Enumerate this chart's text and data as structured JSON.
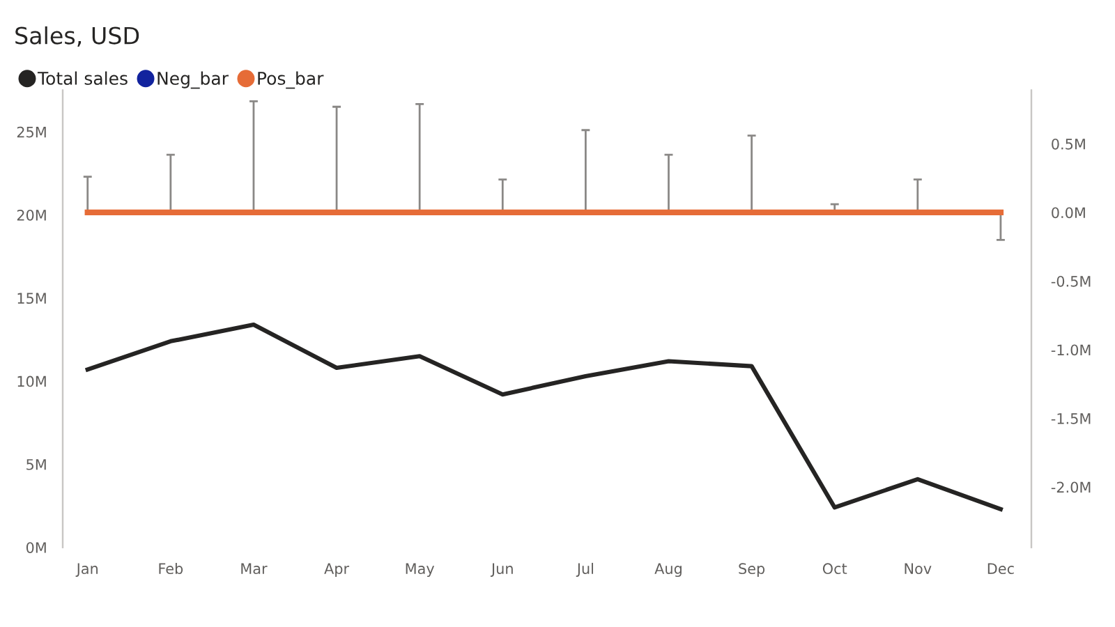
{
  "chart_data": {
    "type": "line",
    "title": "Sales, USD",
    "categories": [
      "Jan",
      "Feb",
      "Mar",
      "Apr",
      "May",
      "Jun",
      "Jul",
      "Aug",
      "Sep",
      "Oct",
      "Nov",
      "Dec"
    ],
    "series": [
      {
        "name": "Total sales",
        "color": "#252423",
        "values": [
          10.7,
          12.4,
          13.4,
          10.8,
          11.5,
          9.2,
          10.3,
          11.2,
          10.9,
          2.4,
          4.1,
          2.3
        ]
      },
      {
        "name": "Neg_bar",
        "color": "#12239e",
        "axis": "y2",
        "values": [
          null,
          null,
          null,
          null,
          null,
          null,
          null,
          null,
          null,
          null,
          null,
          null
        ]
      },
      {
        "name": "Pos_bar",
        "color": "#e66c37",
        "axis": "y2",
        "values": [
          0,
          0,
          0,
          0,
          0,
          0,
          0,
          0,
          0,
          0,
          0,
          0
        ],
        "errors": [
          [
            0,
            0.26
          ],
          [
            0,
            0.42
          ],
          [
            0,
            0.81
          ],
          [
            0,
            0.77
          ],
          [
            0,
            0.79
          ],
          [
            0,
            0.24
          ],
          [
            0,
            0.6
          ],
          [
            0,
            0.42
          ],
          [
            0,
            0.56
          ],
          [
            0,
            0.06
          ],
          [
            0,
            0.24
          ],
          [
            -0.2,
            0
          ]
        ]
      }
    ],
    "ylim": [
      0,
      27.5
    ],
    "yticks": [
      {
        "value": 0,
        "label": "0M"
      },
      {
        "value": 5,
        "label": "5M"
      },
      {
        "value": 10,
        "label": "10M"
      },
      {
        "value": 15,
        "label": "15M"
      },
      {
        "value": 20,
        "label": "20M"
      },
      {
        "value": 25,
        "label": "25M"
      }
    ],
    "y2lim": [
      -2.44,
      0.89
    ],
    "y2ticks": [
      {
        "value": -2,
        "label": "-2.0M"
      },
      {
        "value": -1.5,
        "label": "-1.5M"
      },
      {
        "value": -1,
        "label": "-1.0M"
      },
      {
        "value": -0.5,
        "label": "-0.5M"
      },
      {
        "value": 0,
        "label": "0.0M"
      },
      {
        "value": 0.5,
        "label": "0.5M"
      }
    ],
    "legend": "top left",
    "grid": false,
    "marker": "none",
    "line_style": "solid"
  }
}
